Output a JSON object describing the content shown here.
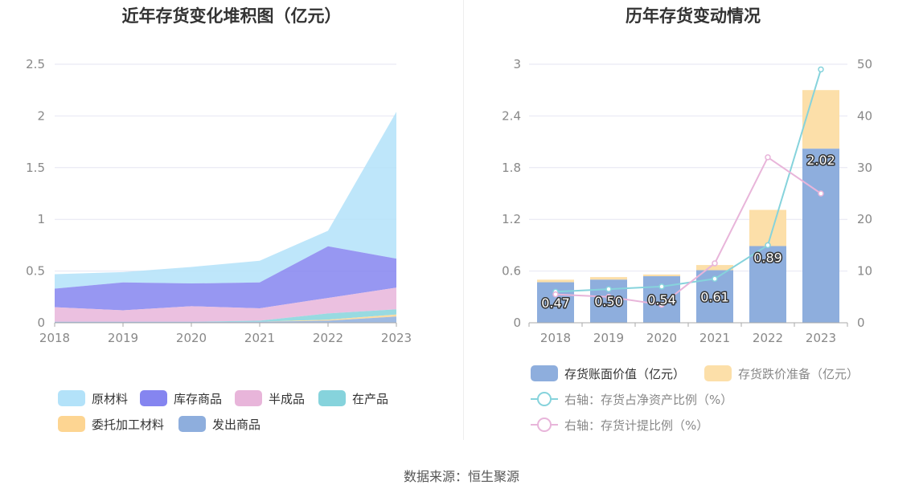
{
  "source_text": "数据来源：恒生聚源",
  "chart_data": [
    {
      "type": "area",
      "stacked": true,
      "title": "近年存货变化堆积图（亿元）",
      "categories": [
        "2018",
        "2019",
        "2020",
        "2021",
        "2022",
        "2023"
      ],
      "ylim": [
        0,
        2.5
      ],
      "yticks": [
        "0",
        "0.5",
        "1",
        "1.5",
        "2",
        "2.5"
      ],
      "grid": true,
      "legend_position": "bottom",
      "series": [
        {
          "name": "发出商品",
          "color": "#8eaedd",
          "values": [
            0.01,
            0.01,
            0.01,
            0.01,
            0.02,
            0.06
          ]
        },
        {
          "name": "委托加工材料",
          "color": "#fdd592",
          "values": [
            0.0,
            0.0,
            0.0,
            0.0,
            0.01,
            0.02
          ]
        },
        {
          "name": "在产品",
          "color": "#86d3dc",
          "values": [
            0.0,
            0.0,
            0.0,
            0.01,
            0.06,
            0.05
          ]
        },
        {
          "name": "半成品",
          "color": "#e8b5da",
          "values": [
            0.14,
            0.11,
            0.15,
            0.12,
            0.15,
            0.21
          ]
        },
        {
          "name": "库存商品",
          "color": "#8585f0",
          "values": [
            0.18,
            0.27,
            0.22,
            0.25,
            0.5,
            0.28
          ]
        },
        {
          "name": "原材料",
          "color": "#b3e2f9",
          "values": [
            0.14,
            0.1,
            0.16,
            0.21,
            0.15,
            1.42
          ]
        }
      ]
    },
    {
      "type": "bar",
      "stacked": true,
      "title": "历年存货变动情况",
      "categories": [
        "2018",
        "2019",
        "2020",
        "2021",
        "2022",
        "2023"
      ],
      "ylim": [
        0,
        3
      ],
      "yticks": [
        "0",
        "0.6",
        "1.2",
        "1.8",
        "2.4",
        "3"
      ],
      "y2lim": [
        0,
        50
      ],
      "y2ticks": [
        "0",
        "10",
        "20",
        "30",
        "40",
        "50"
      ],
      "grid": true,
      "legend_position": "bottom",
      "series": [
        {
          "name": "存货账面价值（亿元）",
          "color": "#8eaedd",
          "values": [
            0.47,
            0.5,
            0.54,
            0.61,
            0.89,
            2.02
          ],
          "labels": [
            "0.47",
            "0.50",
            "0.54",
            "0.61",
            "0.89",
            "2.02"
          ]
        },
        {
          "name": "存货跌价准备（亿元）",
          "color": "#fcdfa9",
          "values": [
            0.03,
            0.03,
            0.02,
            0.06,
            0.42,
            0.68
          ]
        }
      ],
      "line_series": [
        {
          "name": "右轴：存货占净资产比例（%）",
          "color": "#86d3dc",
          "values": [
            6.0,
            6.5,
            7.0,
            8.5,
            15.0,
            49.0
          ]
        },
        {
          "name": "右轴：存货计提比例（%）",
          "color": "#e8b5da",
          "values": [
            5.5,
            5.0,
            3.5,
            11.5,
            32.0,
            25.0
          ]
        }
      ]
    }
  ]
}
